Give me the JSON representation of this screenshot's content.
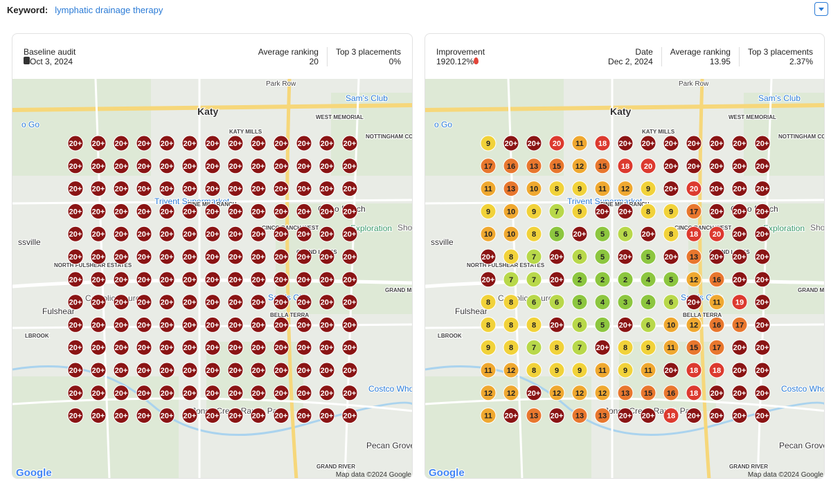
{
  "keyword": {
    "label": "Keyword:",
    "value": "lymphatic drainage therapy"
  },
  "panels": [
    {
      "stats": [
        {
          "label": "Baseline audit",
          "value": "Oct 3, 2024"
        },
        {
          "label": "Average ranking",
          "value": "20"
        },
        {
          "label": "Top 3 placements",
          "value": "0%"
        }
      ],
      "grid": [
        [
          "20+",
          "20+",
          "20+",
          "20+",
          "20+",
          "20+",
          "20+",
          "20+",
          "20+",
          "20+",
          "20+",
          "20+",
          "20+"
        ],
        [
          "20+",
          "20+",
          "20+",
          "20+",
          "20+",
          "20+",
          "20+",
          "20+",
          "20+",
          "20+",
          "20+",
          "20+",
          "20+"
        ],
        [
          "20+",
          "20+",
          "20+",
          "20+",
          "20+",
          "20+",
          "20+",
          "20+",
          "20+",
          "20+",
          "20+",
          "20+",
          "20+"
        ],
        [
          "20+",
          "20+",
          "20+",
          "20+",
          "20+",
          "20+",
          "20+",
          "20+",
          "20+",
          "20+",
          "20+",
          "20+",
          "20+"
        ],
        [
          "20+",
          "20+",
          "20+",
          "20+",
          "20+",
          "20+",
          "20+",
          "20+",
          "20+",
          "20+",
          "20+",
          "20+",
          "20+"
        ],
        [
          "20+",
          "20+",
          "20+",
          "20+",
          "20+",
          "20+",
          "20+",
          "20+",
          "20+",
          "20+",
          "20+",
          "20+",
          "20+"
        ],
        [
          "20+",
          "20+",
          "20+",
          "20+",
          "20+",
          "20+",
          "20+",
          "20+",
          "20+",
          "20+",
          "20+",
          "20+",
          "20+"
        ],
        [
          "20+",
          "20+",
          "20+",
          "20+",
          "20+",
          "20+",
          "20+",
          "20+",
          "20+",
          "20+",
          "20+",
          "20+",
          "20+"
        ],
        [
          "20+",
          "20+",
          "20+",
          "20+",
          "20+",
          "20+",
          "20+",
          "20+",
          "20+",
          "20+",
          "20+",
          "20+",
          "20+"
        ],
        [
          "20+",
          "20+",
          "20+",
          "20+",
          "20+",
          "20+",
          "20+",
          "20+",
          "20+",
          "20+",
          "20+",
          "20+",
          "20+"
        ],
        [
          "20+",
          "20+",
          "20+",
          "20+",
          "20+",
          "20+",
          "20+",
          "20+",
          "20+",
          "20+",
          "20+",
          "20+",
          "20+"
        ],
        [
          "20+",
          "20+",
          "20+",
          "20+",
          "20+",
          "20+",
          "20+",
          "20+",
          "20+",
          "20+",
          "20+",
          "20+",
          "20+"
        ],
        [
          "20+",
          "20+",
          "20+",
          "20+",
          "20+",
          "20+",
          "20+",
          "20+",
          "20+",
          "20+",
          "20+",
          "20+",
          "20+"
        ]
      ]
    },
    {
      "stats": [
        {
          "label": "Improvement",
          "value": "1920.12%"
        },
        {
          "label": "Date",
          "value": "Dec 2, 2024"
        },
        {
          "label": "Average ranking",
          "value": "13.95"
        },
        {
          "label": "Top 3 placements",
          "value": "2.37%"
        }
      ],
      "grid": [
        [
          "9",
          "20+",
          "20+",
          "20",
          "11",
          "18",
          "20+",
          "20+",
          "20+",
          "20+",
          "20+",
          "20+",
          "20+"
        ],
        [
          "17",
          "16",
          "13",
          "15",
          "12",
          "15",
          "18",
          "20",
          "20+",
          "20+",
          "20+",
          "20+",
          "20+"
        ],
        [
          "11",
          "13",
          "10",
          "8",
          "9",
          "11",
          "12",
          "9",
          "20+",
          "20",
          "20+",
          "20+",
          "20+"
        ],
        [
          "9",
          "10",
          "9",
          "7",
          "9",
          "20+",
          "20+",
          "8",
          "9",
          "17",
          "20+",
          "20+",
          "20+"
        ],
        [
          "10",
          "10",
          "8",
          "5",
          "20+",
          "5",
          "6",
          "20+",
          "8",
          "18",
          "20",
          "20+",
          "20+"
        ],
        [
          "20+",
          "8",
          "7",
          "20+",
          "6",
          "5",
          "20+",
          "5",
          "20+",
          "13",
          "20+",
          "20+",
          "20+"
        ],
        [
          "20+",
          "7",
          "7",
          "20+",
          "2",
          "2",
          "2",
          "4",
          "5",
          "12",
          "16",
          "20+",
          "20+"
        ],
        [
          "8",
          "8",
          "6",
          "6",
          "5",
          "4",
          "3",
          "4",
          "6",
          "20+",
          "11",
          "19",
          "20+"
        ],
        [
          "8",
          "8",
          "8",
          "20+",
          "6",
          "5",
          "20+",
          "6",
          "10",
          "12",
          "16",
          "17",
          "20+"
        ],
        [
          "9",
          "8",
          "7",
          "8",
          "7",
          "20+",
          "8",
          "9",
          "11",
          "15",
          "17",
          "20+",
          "20+"
        ],
        [
          "11",
          "12",
          "8",
          "9",
          "9",
          "11",
          "9",
          "11",
          "20+",
          "18",
          "18",
          "20+",
          "20+"
        ],
        [
          "12",
          "12",
          "20+",
          "12",
          "12",
          "12",
          "13",
          "15",
          "16",
          "18",
          "20+",
          "20+",
          "20+"
        ],
        [
          "11",
          "20+",
          "13",
          "20+",
          "13",
          "13",
          "20+",
          "20+",
          "18",
          "20+",
          "20+",
          "20+",
          "20+"
        ]
      ]
    }
  ],
  "map_labels": [
    "Katy",
    "Sam's Club",
    "KATY MILLS",
    "WEST MEMORIAL",
    "NOTTINGHAM COUNTRY",
    "Cinco Ranch",
    "Exploration",
    "Shootin",
    "ssville",
    "NORTH FULSHEAR ESTATES",
    "Fulshear",
    "Catholic Church",
    "Trivent Supermarket",
    "PINE MILL RANCH",
    "GRAND LAKES",
    "GRAND MISSION",
    "Sam's Club",
    "BELLA TERRA",
    "Costco Wholesale",
    "Jones Creek Ranch Park",
    "Pecan Grove",
    "GRAND RIVER",
    "o Go",
    "LBROOK",
    "Park Row",
    "CINCO RANCH WEST"
  ],
  "map_attribution": "Map data ©2024 Google",
  "map_logo": "Google"
}
